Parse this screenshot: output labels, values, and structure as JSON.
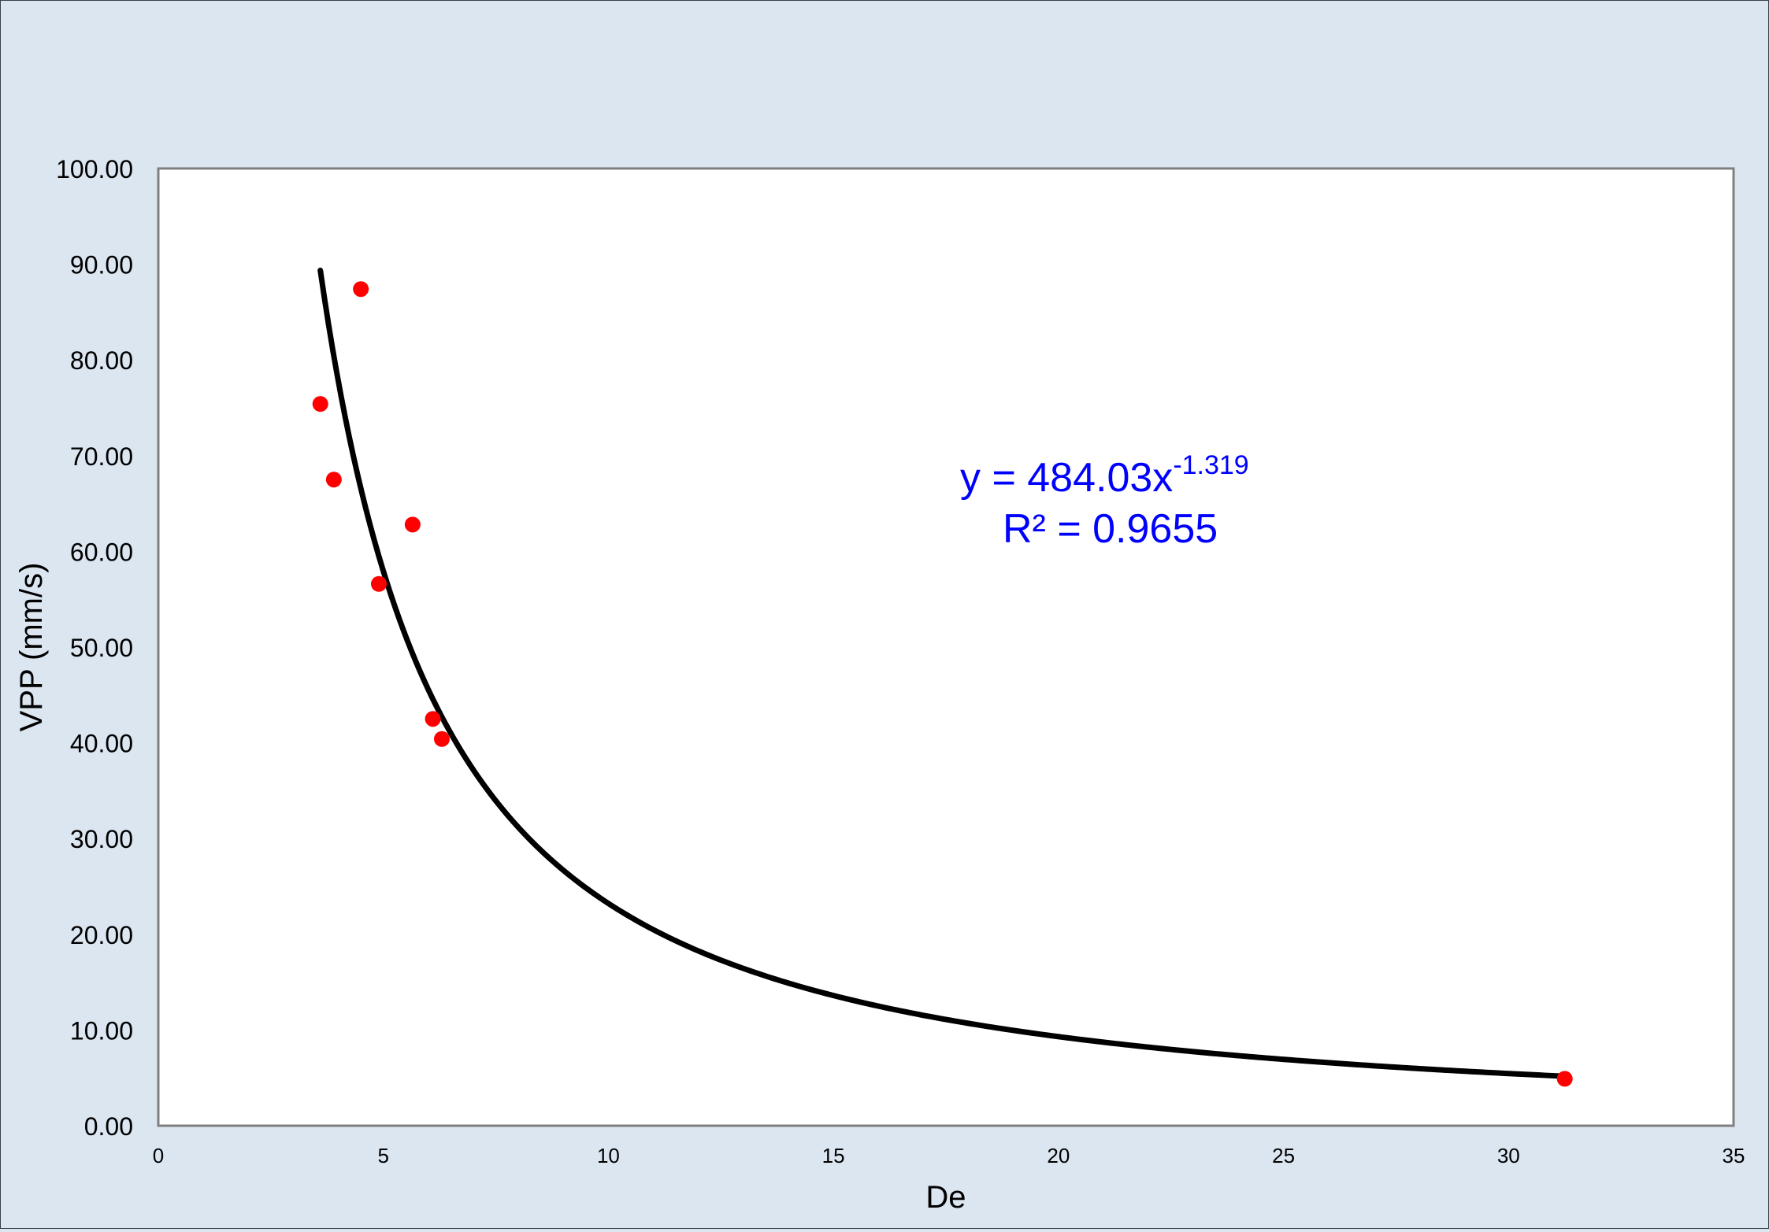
{
  "chart_data": {
    "type": "scatter",
    "title": "",
    "xlabel": "De",
    "ylabel": "VPP (mm/s)",
    "xlim": [
      0,
      35
    ],
    "ylim": [
      0,
      100
    ],
    "x_ticks": [
      "0",
      "5",
      "10",
      "15",
      "20",
      "25",
      "30",
      "35"
    ],
    "y_ticks": [
      "0.00",
      "10.00",
      "20.00",
      "30.00",
      "40.00",
      "50.00",
      "60.00",
      "70.00",
      "80.00",
      "90.00",
      "100.00"
    ],
    "grid": false,
    "legend": "none",
    "series": [
      {
        "points": [
          {
            "x": 3.6,
            "y": 75.4
          },
          {
            "x": 3.9,
            "y": 67.5
          },
          {
            "x": 4.5,
            "y": 87.4
          },
          {
            "x": 4.9,
            "y": 56.6
          },
          {
            "x": 5.65,
            "y": 62.8
          },
          {
            "x": 6.1,
            "y": 42.5
          },
          {
            "x": 6.3,
            "y": 40.4
          },
          {
            "x": 31.25,
            "y": 4.9
          }
        ],
        "color": "#ff0000"
      }
    ],
    "trendline": {
      "type": "power",
      "coefficient": 484.03,
      "exponent": -1.319,
      "x_range": [
        3.6,
        31.25
      ],
      "color": "#000000"
    },
    "annotations": {
      "equation_main": "y = 484.03x",
      "equation_exponent": "-1.319",
      "r_squared": "R² = 0.9655",
      "color": "#0000ff"
    }
  }
}
